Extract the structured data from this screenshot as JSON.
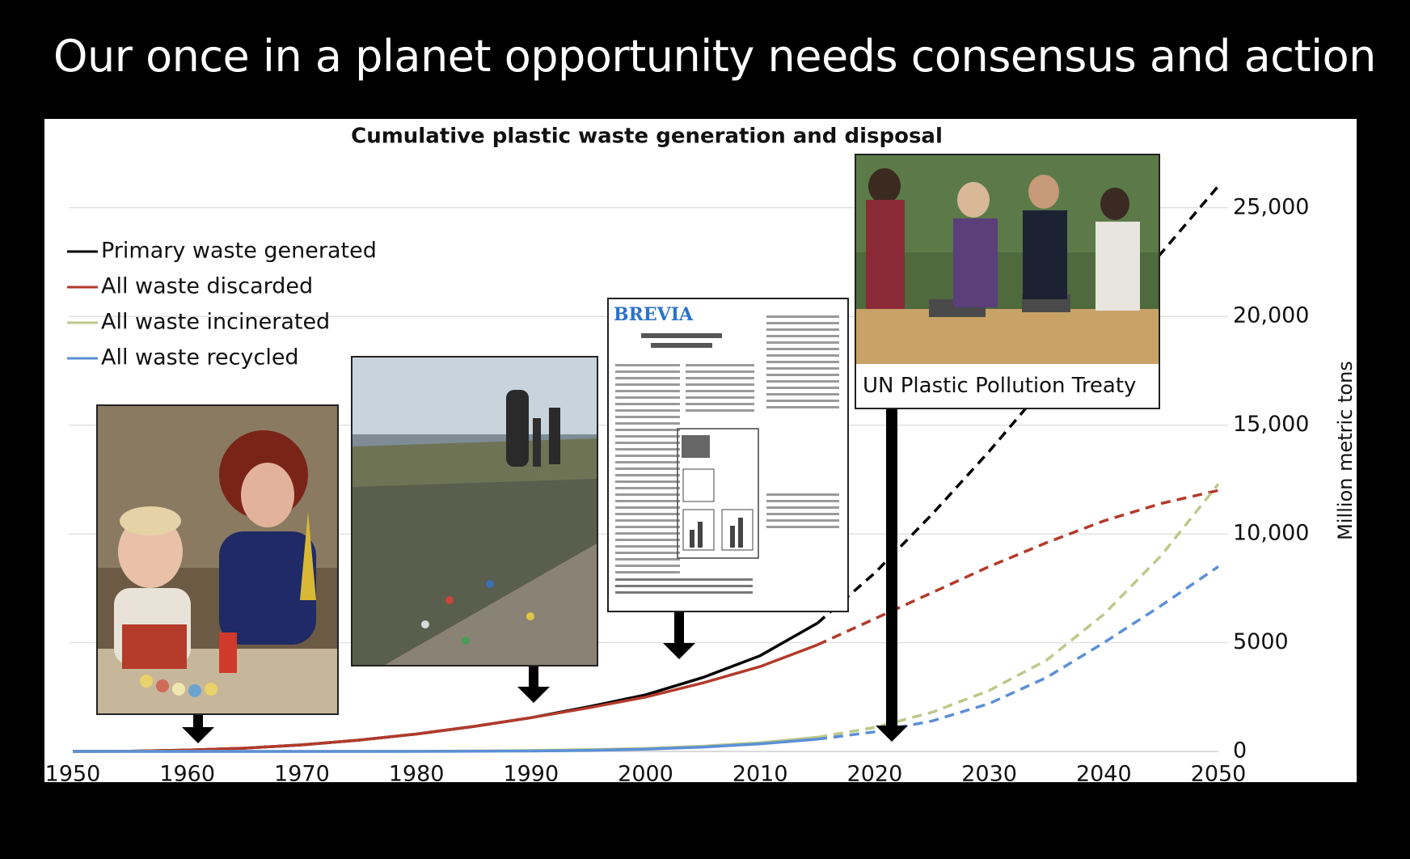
{
  "slide": {
    "title": "Our once in a planet opportunity needs consensus and action"
  },
  "chart_data": {
    "type": "line",
    "title": "Cumulative plastic waste generation and disposal",
    "ylabel": "Million metric tons",
    "xlabel": "",
    "xlim": [
      1950,
      2050
    ],
    "ylim": [
      0,
      27000
    ],
    "x_ticks": [
      "1950",
      "1960",
      "1970",
      "1980",
      "1990",
      "2000",
      "2010",
      "2020",
      "2030",
      "2040",
      "2050"
    ],
    "y_ticks": [
      {
        "value": 0,
        "label": "0"
      },
      {
        "value": 5000,
        "label": "5000"
      },
      {
        "value": 10000,
        "label": "10,000"
      },
      {
        "value": 15000,
        "label": "15,000"
      },
      {
        "value": 20000,
        "label": "20,000"
      },
      {
        "value": 25000,
        "label": "25,000"
      }
    ],
    "grid": "horizontal",
    "legend_position": "top-left",
    "observed_until": 2015,
    "x": [
      1950,
      1955,
      1960,
      1965,
      1970,
      1975,
      1980,
      1985,
      1990,
      1995,
      2000,
      2005,
      2010,
      2015,
      2020,
      2025,
      2030,
      2035,
      2040,
      2045,
      2050
    ],
    "series": [
      {
        "name": "Primary waste generated",
        "color": "#000000",
        "values": [
          0,
          10,
          60,
          150,
          300,
          520,
          800,
          1150,
          1550,
          2050,
          2600,
          3400,
          4400,
          5900,
          8200,
          10900,
          13800,
          16900,
          19900,
          22900,
          26000
        ]
      },
      {
        "name": "All waste discarded",
        "color": "#b33a2b",
        "values": [
          0,
          10,
          60,
          150,
          300,
          520,
          800,
          1150,
          1550,
          2000,
          2500,
          3150,
          3900,
          4900,
          6100,
          7300,
          8500,
          9600,
          10600,
          11400,
          12000
        ]
      },
      {
        "name": "All waste incinerated",
        "color": "#bcc98a",
        "values": [
          0,
          0,
          0,
          0,
          0,
          0,
          10,
          20,
          40,
          80,
          140,
          240,
          400,
          650,
          1100,
          1800,
          2800,
          4200,
          6300,
          9000,
          12300
        ]
      },
      {
        "name": "All waste recycled",
        "color": "#5b8fd6",
        "values": [
          0,
          0,
          0,
          0,
          0,
          0,
          0,
          10,
          20,
          50,
          100,
          200,
          350,
          560,
          900,
          1400,
          2200,
          3400,
          5000,
          6700,
          8500
        ]
      }
    ]
  },
  "annotations": {
    "doc_header": "BREVIA",
    "treaty_caption": "UN Plastic Pollution Treaty"
  }
}
